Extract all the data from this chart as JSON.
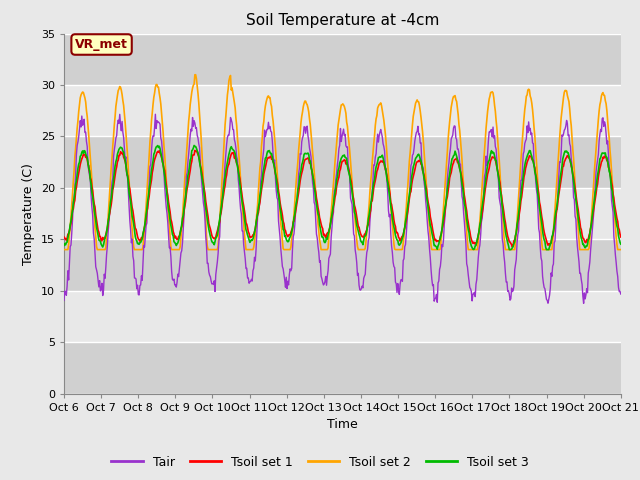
{
  "title": "Soil Temperature at -4cm",
  "xlabel": "Time",
  "ylabel": "Temperature (C)",
  "ylim": [
    0,
    35
  ],
  "ytick_values": [
    0,
    5,
    10,
    15,
    20,
    25,
    30,
    35
  ],
  "xtick_labels": [
    "Oct 6",
    "Oct 7",
    "Oct 8",
    "Oct 9",
    "Oct 10",
    "Oct 11",
    "Oct 12",
    "Oct 13",
    "Oct 14",
    "Oct 15",
    "Oct 16",
    "Oct 17",
    "Oct 18",
    "Oct 19",
    "Oct 20",
    "Oct 21"
  ],
  "annotation_text": "VR_met",
  "annotation_color": "#8B0000",
  "annotation_bg": "#FFFFC0",
  "colors": {
    "Tair": "#9932CC",
    "Tsoil_set1": "#FF0000",
    "Tsoil_set2": "#FFA500",
    "Tsoil_set3": "#00BB00"
  },
  "line_widths": {
    "Tair": 1.0,
    "Tsoil_set1": 1.2,
    "Tsoil_set2": 1.2,
    "Tsoil_set3": 1.2
  },
  "fig_bg": "#E8E8E8",
  "plot_bg": "#DCDCDC",
  "band_light": "#E8E8E8",
  "band_dark": "#D0D0D0",
  "title_fontsize": 11,
  "axis_fontsize": 9,
  "tick_fontsize": 8,
  "legend_fontsize": 9,
  "num_days": 15,
  "points_per_day": 48
}
